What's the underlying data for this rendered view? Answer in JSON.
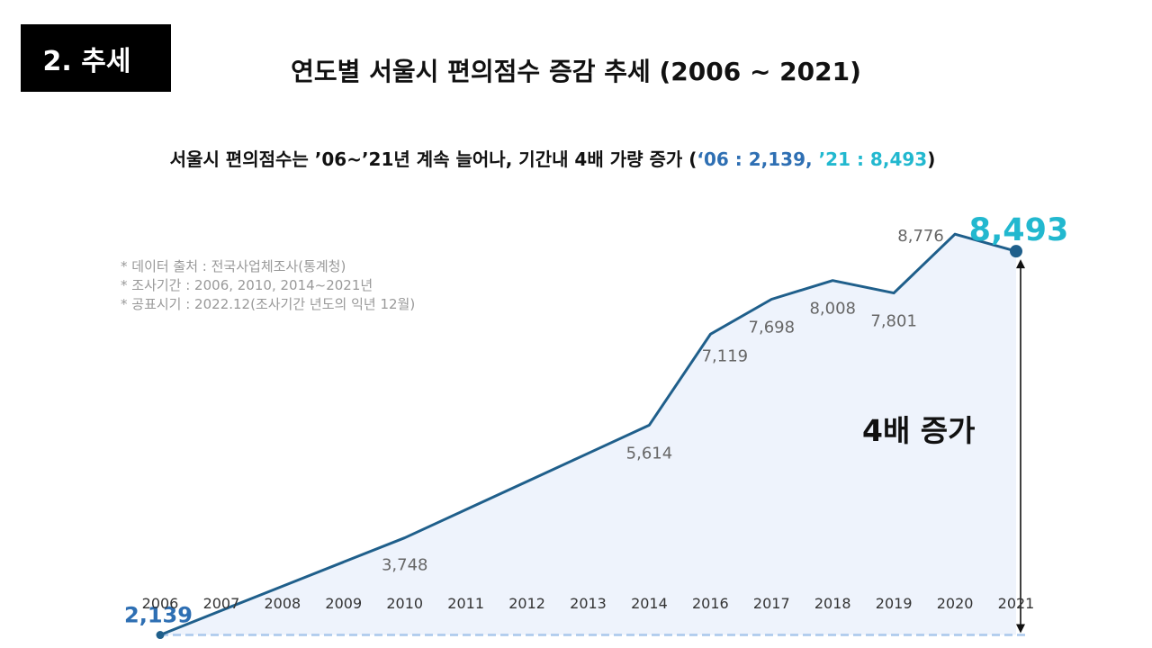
{
  "header": {
    "section_label": "2. 추세",
    "title": "연도별 서울시 편의점수 증감 추세 (2006 ~ 2021)"
  },
  "summary": {
    "text": "서울시 편의점수는 ’06~’21년 계속 늘어나, 기간내 4배 가량 증가 (",
    "start_value": "‘06 : 2,139",
    "separator": ",  ",
    "end_value": "’21 : 8,493",
    "close": ")"
  },
  "notes": [
    "* 데이터 출처 : 전국사업체조사(통계청)",
    "* 조사기간 : 2006, 2010, 2014~2021년",
    "* 공표시기 : 2022.12(조사기간  년도의  익년 12월)"
  ],
  "growth_label": "4배 증가",
  "colors": {
    "line": "#1f5f8b",
    "area": "#eef3fc",
    "baseline": "#a9c7ec",
    "start_label": "#2e6fb3",
    "end_label": "#22b8cf",
    "point_label": "#666666"
  },
  "chart_data": {
    "type": "area",
    "title": "연도별 서울시 편의점수 증감 추세 (2006 ~ 2021)",
    "categories": [
      "2006",
      "2007",
      "2008",
      "2009",
      "2010",
      "2011",
      "2012",
      "2013",
      "2014",
      "2016",
      "2017",
      "2018",
      "2019",
      "2020",
      "2021"
    ],
    "values": [
      2139,
      2544,
      2946,
      3348,
      3748,
      4214,
      4681,
      5147,
      5614,
      7119,
      7698,
      8008,
      7801,
      8776,
      8493
    ],
    "labels": [
      {
        "index": 0,
        "text": "2,139",
        "style": "start"
      },
      {
        "index": 4,
        "text": "3,748",
        "style": "normal"
      },
      {
        "index": 8,
        "text": "5,614",
        "style": "normal"
      },
      {
        "index": 9,
        "text": "7,119",
        "style": "normal"
      },
      {
        "index": 10,
        "text": "7,698",
        "style": "normal"
      },
      {
        "index": 11,
        "text": "8,008",
        "style": "normal"
      },
      {
        "index": 12,
        "text": "7,801",
        "style": "normal"
      },
      {
        "index": 13,
        "text": "8,776",
        "style": "normal"
      },
      {
        "index": 14,
        "text": "8,493",
        "style": "end"
      }
    ],
    "xlabel": "",
    "ylabel": "",
    "ylim": [
      1700,
      9300
    ],
    "baseline_value": 2139,
    "growth_annotation": "4배 증가",
    "grid": false
  }
}
